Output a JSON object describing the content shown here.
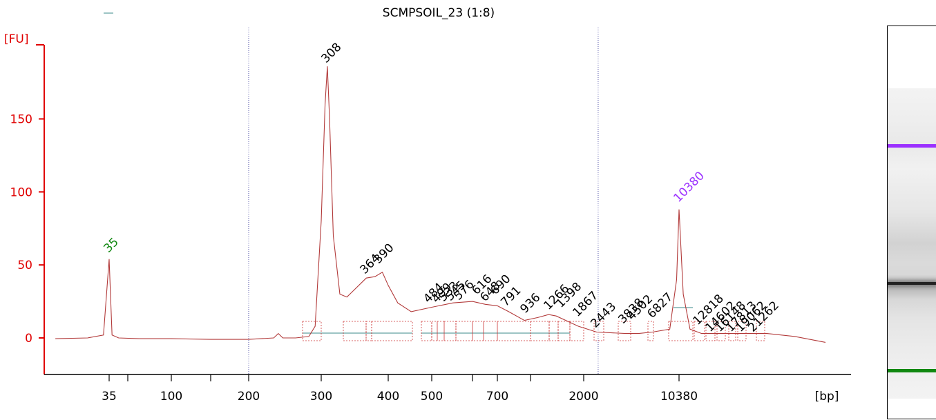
{
  "title": "SCMPSOIL_23 (1:8)",
  "colors": {
    "axis": "#e00000",
    "trace": "#b23a3a",
    "lower_marker": "#118811",
    "upper_marker": "#9b30ff",
    "gel_upper": "#9b30ff",
    "gel_lower": "#118811"
  },
  "chart_data": {
    "type": "line",
    "title": "SCMPSOIL_23 (1:8)",
    "xlabel": "[bp]",
    "ylabel": "[FU]",
    "x_scale": "categorical-sizing-ladder",
    "x_tick_labels": [
      "35",
      "100",
      "200",
      "300",
      "400",
      "500",
      "700",
      "2000",
      "10380"
    ],
    "y_ticks": [
      0,
      50,
      100,
      150
    ],
    "ylim": [
      -25,
      190
    ],
    "grid": false,
    "reference_lines_bp": [
      200,
      2500
    ],
    "lower_marker": {
      "label": "35",
      "fu": 54
    },
    "upper_marker": {
      "label": "10380",
      "fu": 88
    },
    "trace": {
      "bp": [
        20,
        28,
        33,
        35,
        37,
        42,
        60,
        100,
        150,
        200,
        230,
        236,
        242,
        260,
        280,
        290,
        300,
        305,
        308,
        311,
        316,
        325,
        335,
        364,
        378,
        390,
        400,
        420,
        450,
        500,
        550,
        600,
        650,
        700,
        791,
        936,
        1100,
        1266,
        1398,
        1867,
        2443,
        3838,
        5000,
        6827,
        9000,
        10000,
        10380,
        10800,
        11500,
        12818,
        15000,
        21262,
        27000,
        35000
      ],
      "fu": [
        -0.5,
        0,
        2,
        54,
        2,
        0,
        -0.5,
        -0.5,
        -1,
        -1,
        0,
        3,
        0,
        0,
        1,
        8,
        80,
        160,
        186,
        150,
        70,
        30,
        28,
        41,
        42,
        45,
        36,
        24,
        18,
        21,
        24,
        25,
        23,
        22,
        18,
        12,
        14,
        16,
        15,
        8,
        4,
        3,
        3,
        4,
        6,
        40,
        88,
        30,
        6,
        3,
        3,
        3,
        1,
        -3
      ]
    },
    "peak_labels": [
      "35",
      "308",
      "364",
      "390",
      "484",
      "499",
      "533",
      "545",
      "576",
      "616",
      "648",
      "690",
      "791",
      "936",
      "1266",
      "1398",
      "1867",
      "2443",
      "3838",
      "4502",
      "6827",
      "10380",
      "12818",
      "14602",
      "16148",
      "17813",
      "19062",
      "21262"
    ]
  }
}
